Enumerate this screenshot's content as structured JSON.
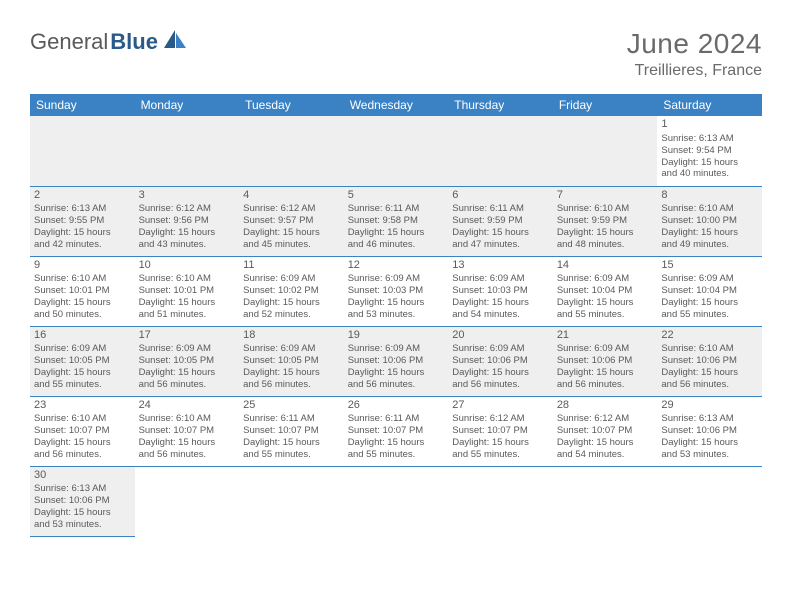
{
  "brand": {
    "name_part1": "General",
    "name_part2": "Blue"
  },
  "title": "June 2024",
  "location": "Treillieres, France",
  "colors": {
    "header_bg": "#3a82c4",
    "header_text": "#ffffff",
    "alt_row_bg": "#efefef",
    "text": "#5a5a5a",
    "border": "#3a82c4"
  },
  "day_headers": [
    "Sunday",
    "Monday",
    "Tuesday",
    "Wednesday",
    "Thursday",
    "Friday",
    "Saturday"
  ],
  "weeks": [
    [
      null,
      null,
      null,
      null,
      null,
      null,
      {
        "n": "1",
        "sunrise": "Sunrise: 6:13 AM",
        "sunset": "Sunset: 9:54 PM",
        "daylight1": "Daylight: 15 hours",
        "daylight2": "and 40 minutes."
      }
    ],
    [
      {
        "n": "2",
        "sunrise": "Sunrise: 6:13 AM",
        "sunset": "Sunset: 9:55 PM",
        "daylight1": "Daylight: 15 hours",
        "daylight2": "and 42 minutes."
      },
      {
        "n": "3",
        "sunrise": "Sunrise: 6:12 AM",
        "sunset": "Sunset: 9:56 PM",
        "daylight1": "Daylight: 15 hours",
        "daylight2": "and 43 minutes."
      },
      {
        "n": "4",
        "sunrise": "Sunrise: 6:12 AM",
        "sunset": "Sunset: 9:57 PM",
        "daylight1": "Daylight: 15 hours",
        "daylight2": "and 45 minutes."
      },
      {
        "n": "5",
        "sunrise": "Sunrise: 6:11 AM",
        "sunset": "Sunset: 9:58 PM",
        "daylight1": "Daylight: 15 hours",
        "daylight2": "and 46 minutes."
      },
      {
        "n": "6",
        "sunrise": "Sunrise: 6:11 AM",
        "sunset": "Sunset: 9:59 PM",
        "daylight1": "Daylight: 15 hours",
        "daylight2": "and 47 minutes."
      },
      {
        "n": "7",
        "sunrise": "Sunrise: 6:10 AM",
        "sunset": "Sunset: 9:59 PM",
        "daylight1": "Daylight: 15 hours",
        "daylight2": "and 48 minutes."
      },
      {
        "n": "8",
        "sunrise": "Sunrise: 6:10 AM",
        "sunset": "Sunset: 10:00 PM",
        "daylight1": "Daylight: 15 hours",
        "daylight2": "and 49 minutes."
      }
    ],
    [
      {
        "n": "9",
        "sunrise": "Sunrise: 6:10 AM",
        "sunset": "Sunset: 10:01 PM",
        "daylight1": "Daylight: 15 hours",
        "daylight2": "and 50 minutes."
      },
      {
        "n": "10",
        "sunrise": "Sunrise: 6:10 AM",
        "sunset": "Sunset: 10:01 PM",
        "daylight1": "Daylight: 15 hours",
        "daylight2": "and 51 minutes."
      },
      {
        "n": "11",
        "sunrise": "Sunrise: 6:09 AM",
        "sunset": "Sunset: 10:02 PM",
        "daylight1": "Daylight: 15 hours",
        "daylight2": "and 52 minutes."
      },
      {
        "n": "12",
        "sunrise": "Sunrise: 6:09 AM",
        "sunset": "Sunset: 10:03 PM",
        "daylight1": "Daylight: 15 hours",
        "daylight2": "and 53 minutes."
      },
      {
        "n": "13",
        "sunrise": "Sunrise: 6:09 AM",
        "sunset": "Sunset: 10:03 PM",
        "daylight1": "Daylight: 15 hours",
        "daylight2": "and 54 minutes."
      },
      {
        "n": "14",
        "sunrise": "Sunrise: 6:09 AM",
        "sunset": "Sunset: 10:04 PM",
        "daylight1": "Daylight: 15 hours",
        "daylight2": "and 55 minutes."
      },
      {
        "n": "15",
        "sunrise": "Sunrise: 6:09 AM",
        "sunset": "Sunset: 10:04 PM",
        "daylight1": "Daylight: 15 hours",
        "daylight2": "and 55 minutes."
      }
    ],
    [
      {
        "n": "16",
        "sunrise": "Sunrise: 6:09 AM",
        "sunset": "Sunset: 10:05 PM",
        "daylight1": "Daylight: 15 hours",
        "daylight2": "and 55 minutes."
      },
      {
        "n": "17",
        "sunrise": "Sunrise: 6:09 AM",
        "sunset": "Sunset: 10:05 PM",
        "daylight1": "Daylight: 15 hours",
        "daylight2": "and 56 minutes."
      },
      {
        "n": "18",
        "sunrise": "Sunrise: 6:09 AM",
        "sunset": "Sunset: 10:05 PM",
        "daylight1": "Daylight: 15 hours",
        "daylight2": "and 56 minutes."
      },
      {
        "n": "19",
        "sunrise": "Sunrise: 6:09 AM",
        "sunset": "Sunset: 10:06 PM",
        "daylight1": "Daylight: 15 hours",
        "daylight2": "and 56 minutes."
      },
      {
        "n": "20",
        "sunrise": "Sunrise: 6:09 AM",
        "sunset": "Sunset: 10:06 PM",
        "daylight1": "Daylight: 15 hours",
        "daylight2": "and 56 minutes."
      },
      {
        "n": "21",
        "sunrise": "Sunrise: 6:09 AM",
        "sunset": "Sunset: 10:06 PM",
        "daylight1": "Daylight: 15 hours",
        "daylight2": "and 56 minutes."
      },
      {
        "n": "22",
        "sunrise": "Sunrise: 6:10 AM",
        "sunset": "Sunset: 10:06 PM",
        "daylight1": "Daylight: 15 hours",
        "daylight2": "and 56 minutes."
      }
    ],
    [
      {
        "n": "23",
        "sunrise": "Sunrise: 6:10 AM",
        "sunset": "Sunset: 10:07 PM",
        "daylight1": "Daylight: 15 hours",
        "daylight2": "and 56 minutes."
      },
      {
        "n": "24",
        "sunrise": "Sunrise: 6:10 AM",
        "sunset": "Sunset: 10:07 PM",
        "daylight1": "Daylight: 15 hours",
        "daylight2": "and 56 minutes."
      },
      {
        "n": "25",
        "sunrise": "Sunrise: 6:11 AM",
        "sunset": "Sunset: 10:07 PM",
        "daylight1": "Daylight: 15 hours",
        "daylight2": "and 55 minutes."
      },
      {
        "n": "26",
        "sunrise": "Sunrise: 6:11 AM",
        "sunset": "Sunset: 10:07 PM",
        "daylight1": "Daylight: 15 hours",
        "daylight2": "and 55 minutes."
      },
      {
        "n": "27",
        "sunrise": "Sunrise: 6:12 AM",
        "sunset": "Sunset: 10:07 PM",
        "daylight1": "Daylight: 15 hours",
        "daylight2": "and 55 minutes."
      },
      {
        "n": "28",
        "sunrise": "Sunrise: 6:12 AM",
        "sunset": "Sunset: 10:07 PM",
        "daylight1": "Daylight: 15 hours",
        "daylight2": "and 54 minutes."
      },
      {
        "n": "29",
        "sunrise": "Sunrise: 6:13 AM",
        "sunset": "Sunset: 10:06 PM",
        "daylight1": "Daylight: 15 hours",
        "daylight2": "and 53 minutes."
      }
    ],
    [
      {
        "n": "30",
        "sunrise": "Sunrise: 6:13 AM",
        "sunset": "Sunset: 10:06 PM",
        "daylight1": "Daylight: 15 hours",
        "daylight2": "and 53 minutes."
      },
      null,
      null,
      null,
      null,
      null,
      null
    ]
  ]
}
